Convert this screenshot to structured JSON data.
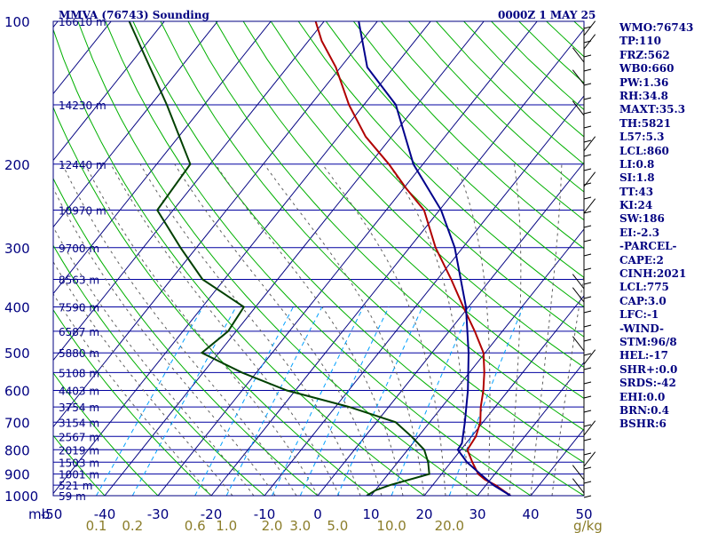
{
  "header": {
    "station": "MMVA (76743) Sounding",
    "time": "0000Z  1 MAY 25"
  },
  "chart_data": {
    "type": "line",
    "x_label_left": "mb",
    "x_unit": "g/kg",
    "pressure_levels": [
      100,
      200,
      300,
      400,
      500,
      600,
      700,
      800,
      900,
      1000
    ],
    "temperature_ticks": [
      -50,
      -40,
      -30,
      -20,
      -10,
      0,
      10,
      20,
      30,
      40,
      50
    ],
    "mixing_ratio_ticks": [
      0.1,
      0.2,
      0.6,
      1.0,
      2.0,
      3.0,
      5.0,
      10.0,
      20.0
    ],
    "height_labels": [
      {
        "p": 100,
        "label": "16610 m"
      },
      {
        "p": 150,
        "label": "14230 m"
      },
      {
        "p": 200,
        "label": "12440 m"
      },
      {
        "p": 250,
        "label": "10970 m"
      },
      {
        "p": 300,
        "label": "9700 m"
      },
      {
        "p": 350,
        "label": "8563 m"
      },
      {
        "p": 400,
        "label": "7590 m"
      },
      {
        "p": 450,
        "label": "6587 m"
      },
      {
        "p": 500,
        "label": "5880 m"
      },
      {
        "p": 550,
        "label": "5108 m"
      },
      {
        "p": 600,
        "label": "4403 m"
      },
      {
        "p": 650,
        "label": "3754 m"
      },
      {
        "p": 700,
        "label": "3154 m"
      },
      {
        "p": 750,
        "label": "2567 m"
      },
      {
        "p": 800,
        "label": "2019 m"
      },
      {
        "p": 850,
        "label": "1503 m"
      },
      {
        "p": 900,
        "label": "1001 m"
      },
      {
        "p": 950,
        "label": "521 m"
      },
      {
        "p": 1000,
        "label": "59 m"
      }
    ],
    "series": [
      {
        "name": "temperature",
        "color": "#b00000",
        "points": [
          [
            1000,
            36.2
          ],
          [
            950,
            31.8
          ],
          [
            925,
            29.0
          ],
          [
            900,
            26.9
          ],
          [
            850,
            24.0
          ],
          [
            800,
            21.2
          ],
          [
            750,
            20.8
          ],
          [
            700,
            19.5
          ],
          [
            650,
            17.3
          ],
          [
            600,
            15.3
          ],
          [
            550,
            12.8
          ],
          [
            500,
            9.7
          ],
          [
            450,
            4.8
          ],
          [
            400,
            -1.0
          ],
          [
            350,
            -7.4
          ],
          [
            300,
            -15.1
          ],
          [
            250,
            -22.9
          ],
          [
            225,
            -29.5
          ],
          [
            200,
            -36.4
          ],
          [
            175,
            -44.9
          ],
          [
            150,
            -52.8
          ],
          [
            125,
            -60.9
          ],
          [
            110,
            -67.5
          ],
          [
            100,
            -71.6
          ]
        ]
      },
      {
        "name": "dewpoint",
        "color": "#004000",
        "points": [
          [
            1000,
            9.2
          ],
          [
            975,
            10.0
          ],
          [
            950,
            12.0
          ],
          [
            900,
            17.7
          ],
          [
            850,
            15.7
          ],
          [
            800,
            13.1
          ],
          [
            750,
            8.7
          ],
          [
            700,
            3.6
          ],
          [
            650,
            -7.4
          ],
          [
            600,
            -21.6
          ],
          [
            550,
            -32.7
          ],
          [
            500,
            -43.2
          ],
          [
            450,
            -41.5
          ],
          [
            400,
            -42.2
          ],
          [
            350,
            -54.1
          ],
          [
            300,
            -63.0
          ],
          [
            250,
            -73.0
          ],
          [
            200,
            -73.7
          ],
          [
            150,
            -87.0
          ],
          [
            100,
            -106.6
          ]
        ]
      },
      {
        "name": "parcel",
        "color": "#00008b",
        "points": [
          [
            1000,
            36.2
          ],
          [
            950,
            31.4
          ],
          [
            900,
            27.3
          ],
          [
            850,
            23.0
          ],
          [
            800,
            19.4
          ],
          [
            775,
            19.2
          ],
          [
            700,
            16.6
          ],
          [
            600,
            12.4
          ],
          [
            500,
            6.9
          ],
          [
            400,
            -0.5
          ],
          [
            300,
            -11.5
          ],
          [
            250,
            -19.7
          ],
          [
            200,
            -31.8
          ],
          [
            150,
            -44.0
          ],
          [
            125,
            -55.0
          ],
          [
            100,
            -63.5
          ]
        ]
      }
    ]
  },
  "indices": [
    "WMO:76743",
    "TP:110",
    "FRZ:562",
    "WB0:660",
    "PW:1.36",
    "RH:34.8",
    "MAXT:35.3",
    "TH:5821",
    "L57:5.3",
    "LCL:860",
    "LI:0.8",
    "SI:1.8",
    "TT:43",
    "KI:24",
    "SW:186",
    "EI:-2.3",
    "-PARCEL-",
    "CAPE:2",
    "CINH:2021",
    "LCL:775",
    "CAP:3.0",
    "LFC:-1",
    "-WIND-",
    "STM:96/8",
    "HEL:-17",
    "SHR+:0.0",
    "SRDS:-42",
    "EHI:0.0",
    "BRN:0.4",
    "BSHR:6"
  ],
  "colors": {
    "axis": "#000080",
    "isobar": "#0000a0",
    "isotherm": "#000080",
    "dry_adiabat": "#00b000",
    "moist_adiabat": "#606060",
    "mixing_ratio": "#00a0ff",
    "wind": "#000000",
    "mixing_label": "#8b7d2a"
  }
}
